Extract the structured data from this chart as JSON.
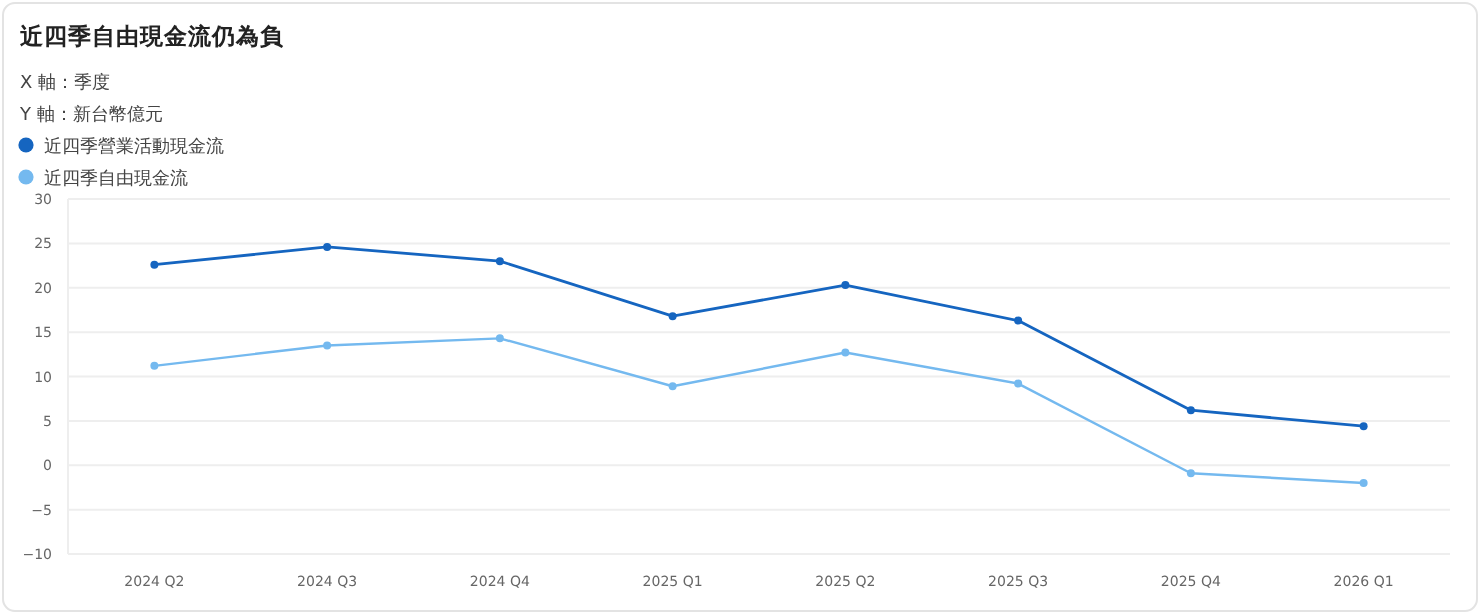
{
  "chart_data": {
    "type": "line",
    "title": "近四季自由現金流仍為負",
    "annotations": [
      "X 軸：季度",
      "Y 軸：新台幣億元"
    ],
    "categories": [
      "2024 Q2",
      "2024 Q3",
      "2024 Q4",
      "2025 Q1",
      "2025 Q2",
      "2025 Q3",
      "2025 Q4",
      "2026 Q1"
    ],
    "series": [
      {
        "name": "近四季營業活動現金流",
        "color": "#1565c0",
        "values": [
          22.6,
          24.6,
          23.0,
          16.8,
          20.3,
          16.3,
          6.2,
          4.4
        ]
      },
      {
        "name": "近四季自由現金流",
        "color": "#74b9ef",
        "values": [
          11.2,
          13.5,
          14.3,
          8.9,
          12.7,
          9.2,
          -0.9,
          -2.0
        ]
      }
    ],
    "ylim": [
      -10,
      30
    ],
    "yticks": [
      -10,
      -5,
      0,
      5,
      10,
      15,
      20,
      25,
      30
    ],
    "grid": "y",
    "legend": "top left",
    "marker": "circle",
    "line_style": "solid"
  }
}
